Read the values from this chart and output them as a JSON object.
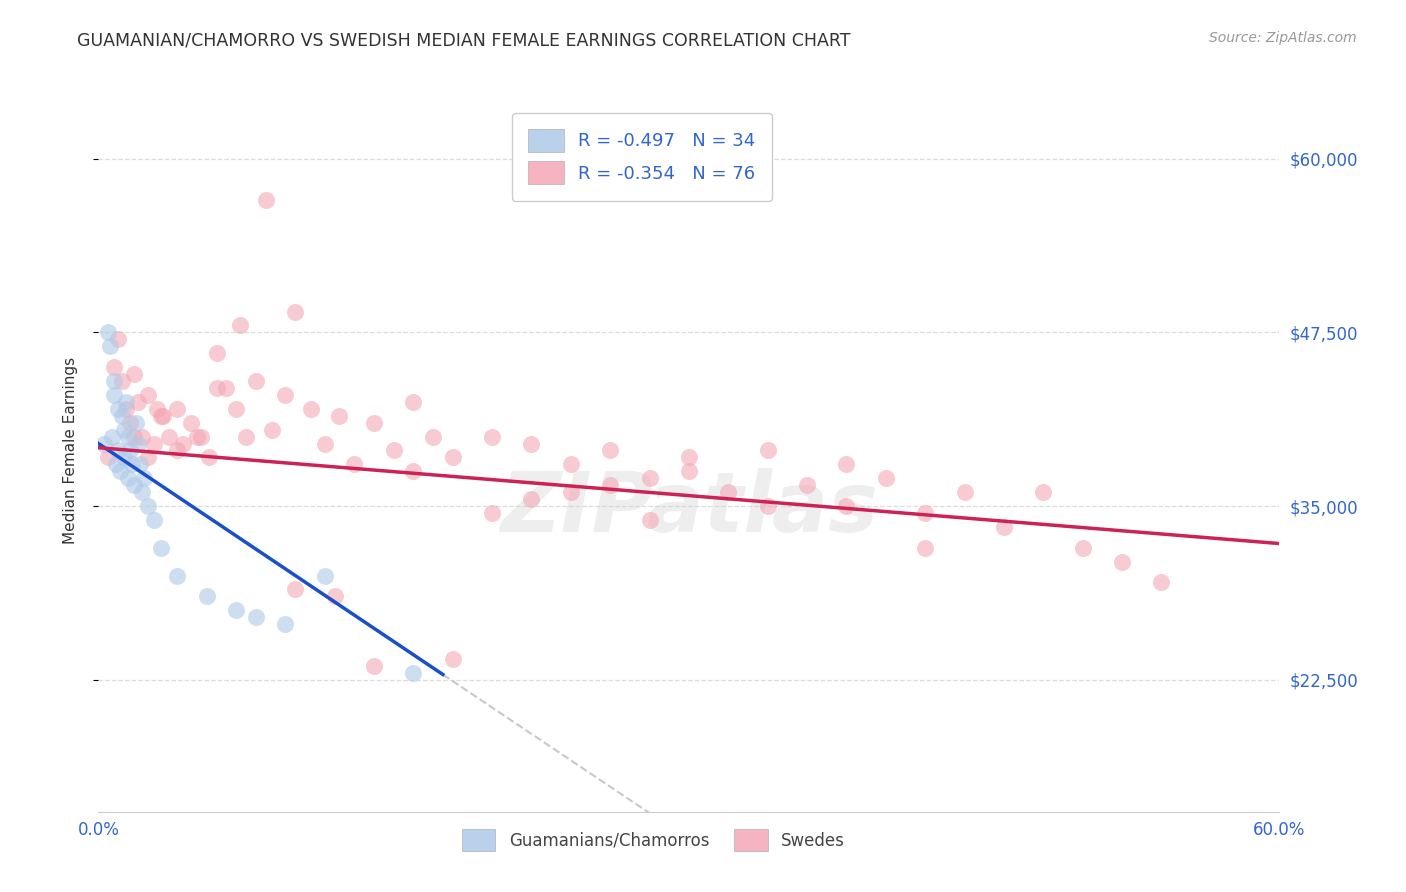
{
  "title": "GUAMANIAN/CHAMORRO VS SWEDISH MEDIAN FEMALE EARNINGS CORRELATION CHART",
  "source": "Source: ZipAtlas.com",
  "ylabel": "Median Female Earnings",
  "x_min": 0.0,
  "x_max": 0.6,
  "y_min": 13000,
  "y_max": 65000,
  "ytick_labels": [
    "$22,500",
    "$35,000",
    "$47,500",
    "$60,000"
  ],
  "ytick_values": [
    22500,
    35000,
    47500,
    60000
  ],
  "legend_r1": "R = -0.497   N = 34",
  "legend_r2": "R = -0.354   N = 76",
  "blue_color": "#aec9e8",
  "pink_color": "#f4a7b5",
  "blue_line_color": "#1a4fcc",
  "pink_line_color": "#cc2255",
  "dashed_color": "#bbbbbb",
  "background_color": "#ffffff",
  "grid_color": "#dddddd",
  "watermark": "ZIPatlas",
  "blue_scatter_x": [
    0.003,
    0.005,
    0.006,
    0.007,
    0.008,
    0.008,
    0.009,
    0.01,
    0.01,
    0.011,
    0.012,
    0.013,
    0.013,
    0.014,
    0.015,
    0.015,
    0.016,
    0.017,
    0.018,
    0.019,
    0.02,
    0.021,
    0.022,
    0.023,
    0.025,
    0.028,
    0.032,
    0.04,
    0.055,
    0.07,
    0.08,
    0.095,
    0.115,
    0.16
  ],
  "blue_scatter_y": [
    39500,
    47500,
    46500,
    40000,
    44000,
    43000,
    38000,
    42000,
    39000,
    37500,
    41500,
    40500,
    38500,
    42500,
    40000,
    37000,
    39000,
    38000,
    36500,
    41000,
    39500,
    38000,
    36000,
    37000,
    35000,
    34000,
    32000,
    30000,
    28500,
    27500,
    27000,
    26500,
    30000,
    23000
  ],
  "pink_scatter_x": [
    0.005,
    0.008,
    0.01,
    0.012,
    0.014,
    0.016,
    0.018,
    0.02,
    0.022,
    0.025,
    0.028,
    0.03,
    0.033,
    0.036,
    0.04,
    0.043,
    0.047,
    0.052,
    0.056,
    0.06,
    0.065,
    0.07,
    0.075,
    0.08,
    0.088,
    0.095,
    0.1,
    0.108,
    0.115,
    0.122,
    0.13,
    0.14,
    0.15,
    0.16,
    0.17,
    0.18,
    0.2,
    0.22,
    0.24,
    0.26,
    0.28,
    0.3,
    0.32,
    0.34,
    0.36,
    0.38,
    0.4,
    0.42,
    0.44,
    0.46,
    0.48,
    0.5,
    0.52,
    0.54,
    0.42,
    0.38,
    0.34,
    0.3,
    0.28,
    0.26,
    0.24,
    0.22,
    0.2,
    0.18,
    0.16,
    0.14,
    0.12,
    0.1,
    0.085,
    0.072,
    0.06,
    0.05,
    0.04,
    0.032,
    0.025,
    0.018
  ],
  "pink_scatter_y": [
    38500,
    45000,
    47000,
    44000,
    42000,
    41000,
    44500,
    42500,
    40000,
    43000,
    39500,
    42000,
    41500,
    40000,
    42000,
    39500,
    41000,
    40000,
    38500,
    46000,
    43500,
    42000,
    40000,
    44000,
    40500,
    43000,
    49000,
    42000,
    39500,
    41500,
    38000,
    41000,
    39000,
    42500,
    40000,
    38500,
    40000,
    39500,
    38000,
    39000,
    37000,
    38500,
    36000,
    39000,
    36500,
    35000,
    37000,
    34500,
    36000,
    33500,
    36000,
    32000,
    31000,
    29500,
    32000,
    38000,
    35000,
    37500,
    34000,
    36500,
    36000,
    35500,
    34500,
    24000,
    37500,
    23500,
    28500,
    29000,
    57000,
    48000,
    43500,
    40000,
    39000,
    41500,
    38500,
    40000
  ]
}
